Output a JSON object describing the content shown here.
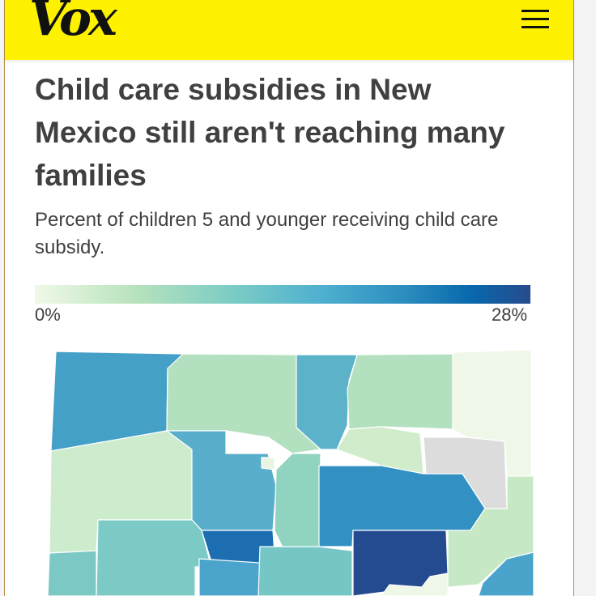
{
  "header": {
    "logo": "Vox",
    "menu_icon": "hamburger-menu-icon",
    "brand_color": "#fff200"
  },
  "article": {
    "title": "Child care subsidies in New Mexico still aren't reaching many families",
    "subtitle": "Percent of children 5 and younger receiving child care subsidy."
  },
  "legend": {
    "min_label": "0%",
    "max_label": "28%",
    "min_value": 0,
    "max_value": 28
  }
}
